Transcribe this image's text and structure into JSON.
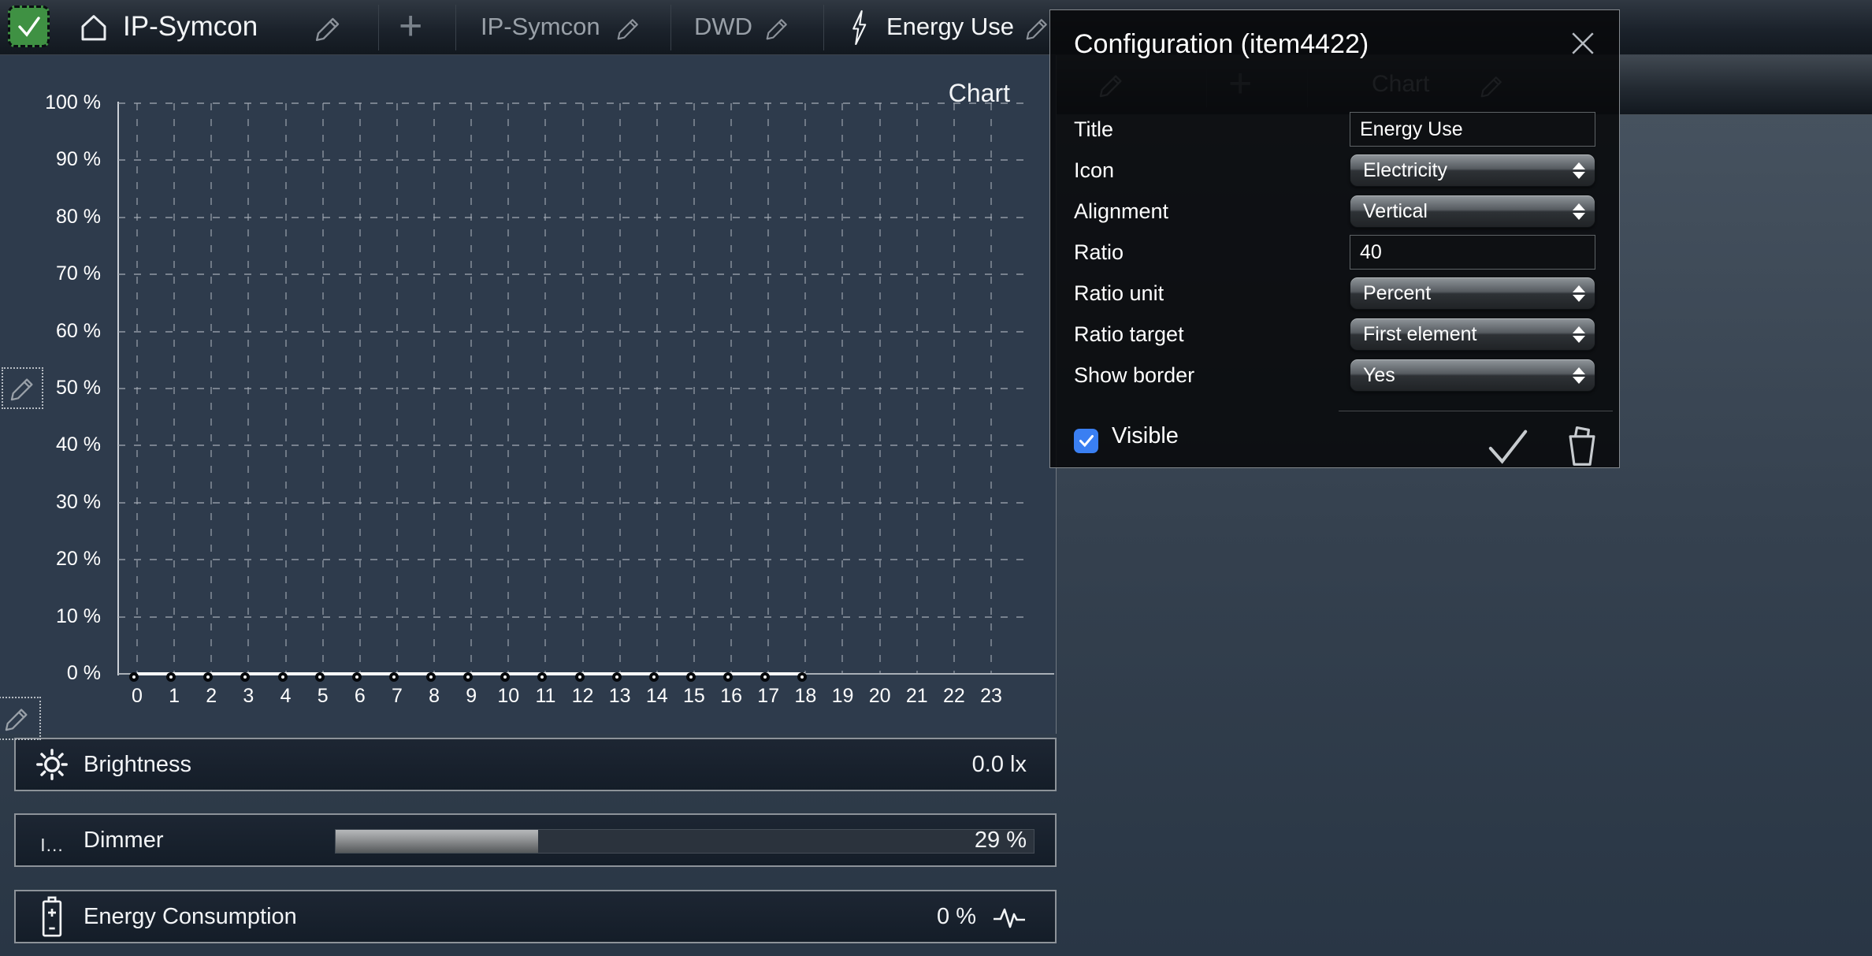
{
  "topbar": {
    "home_title": "IP-Symcon",
    "add_label": "+",
    "tabs": [
      {
        "label": "IP-Symcon"
      },
      {
        "label": "DWD"
      },
      {
        "label": "Energy Use",
        "active": true,
        "icon": "lightning"
      }
    ]
  },
  "subbar": {
    "chart_tab_label": "Chart"
  },
  "chart_data": {
    "type": "line",
    "title": "Chart",
    "x": [
      0,
      1,
      2,
      3,
      4,
      5,
      6,
      7,
      8,
      9,
      10,
      11,
      12,
      13,
      14,
      15,
      16,
      17,
      18,
      19,
      20,
      21,
      22,
      23
    ],
    "series": [
      {
        "name": "Energy Use",
        "values": [
          0,
          0,
          0,
          0,
          0,
          0,
          0,
          0,
          0,
          0,
          0,
          0,
          0,
          0,
          0,
          0,
          0,
          0,
          0,
          null,
          null,
          null,
          null,
          null
        ]
      }
    ],
    "y_ticks": [
      "0 %",
      "10 %",
      "20 %",
      "30 %",
      "40 %",
      "50 %",
      "60 %",
      "70 %",
      "80 %",
      "90 %",
      "100 %"
    ],
    "ylim": [
      0,
      100
    ],
    "grid": "dashed",
    "legend": "none"
  },
  "rows": [
    {
      "icon": "sun-icon",
      "label": "Brightness",
      "value": "0.0 lx"
    },
    {
      "icon": "dimmer-icon",
      "icon_glyph": "I...",
      "label": "Dimmer",
      "value": "29 %",
      "slider_percent": 29
    },
    {
      "icon": "battery-icon",
      "label": "Energy Consumption",
      "value": "0 %",
      "trailing_icon": "pulse-icon"
    }
  ],
  "dialog": {
    "title": "Configuration (item4422)",
    "fields": [
      {
        "label": "Title",
        "type": "text",
        "value": "Energy Use"
      },
      {
        "label": "Icon",
        "type": "select",
        "value": "Electricity"
      },
      {
        "label": "Alignment",
        "type": "select",
        "value": "Vertical"
      },
      {
        "label": "Ratio",
        "type": "text",
        "value": "40"
      },
      {
        "label": "Ratio unit",
        "type": "select",
        "value": "Percent"
      },
      {
        "label": "Ratio target",
        "type": "select",
        "value": "First element"
      },
      {
        "label": "Show border",
        "type": "select",
        "value": "Yes"
      }
    ],
    "visible_label": "Visible",
    "visible_checked": true
  },
  "colors": {
    "accent_green": "#3f9143",
    "checkbox_blue": "#3a7ff2",
    "chart_bg": "#2e3b4c",
    "panel_bg": "#19222e",
    "dialog_bg": "#0a0b0c",
    "text_light": "#f3f5f7",
    "text_muted": "#99a0a8"
  }
}
